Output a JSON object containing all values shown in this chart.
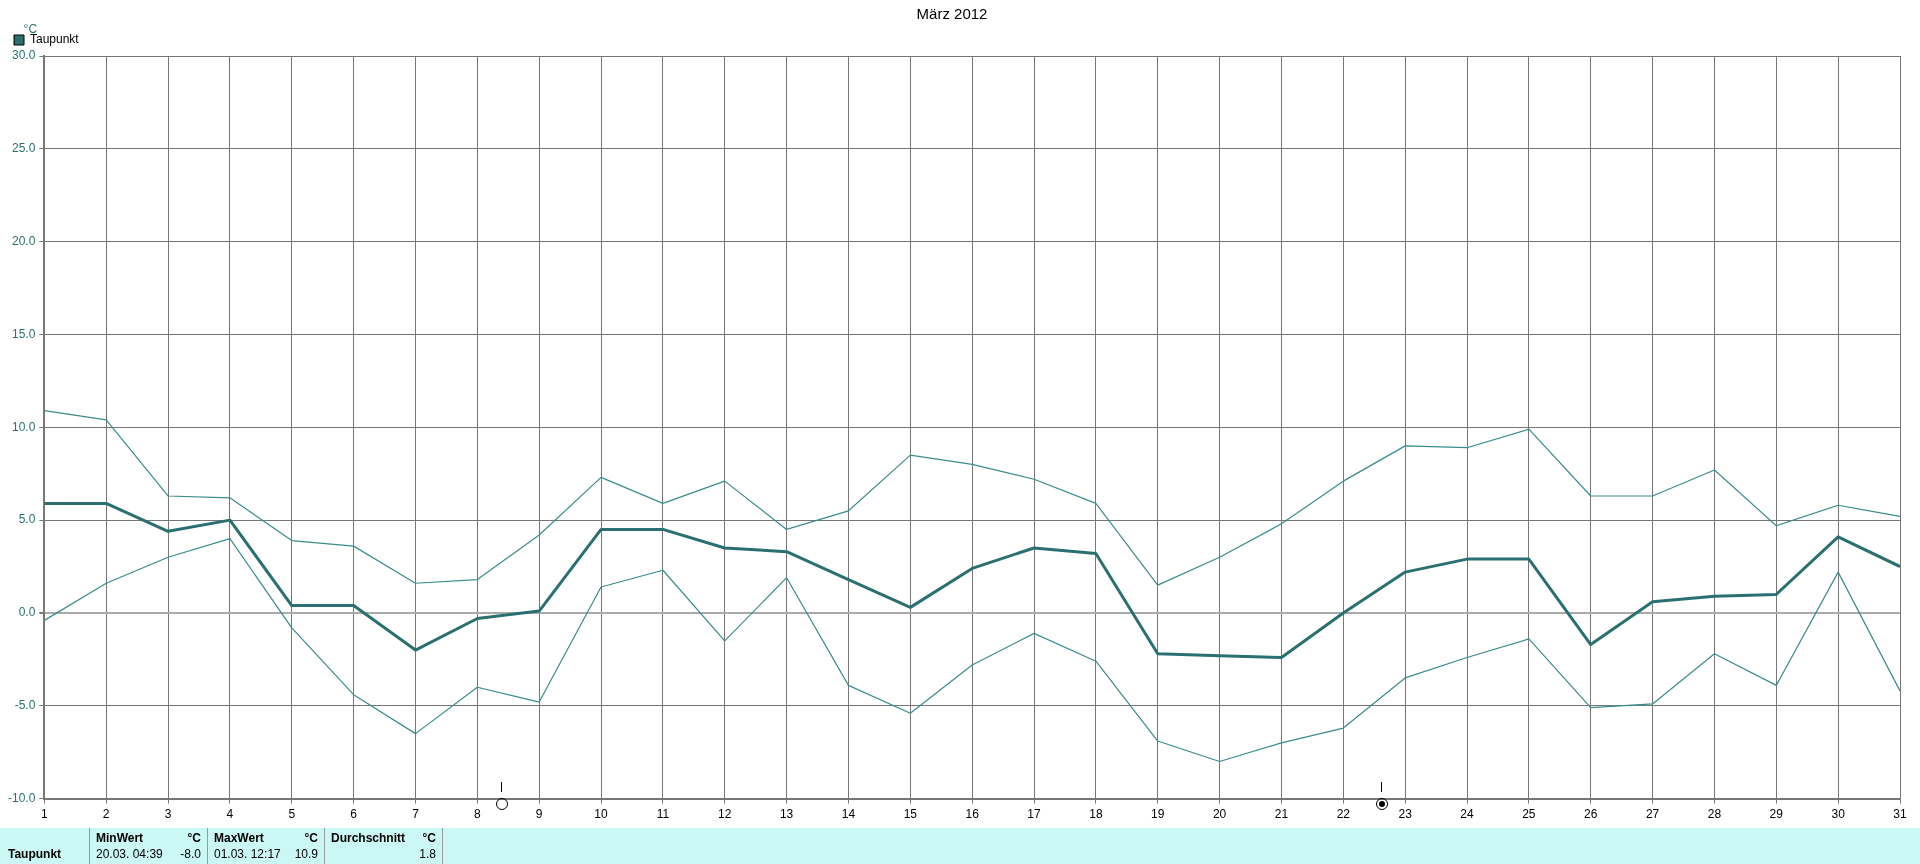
{
  "chart_data": {
    "type": "line",
    "title": "März 2012",
    "ylabel": "°C",
    "x": [
      1,
      2,
      3,
      4,
      5,
      6,
      7,
      8,
      9,
      10,
      11,
      12,
      13,
      14,
      15,
      16,
      17,
      18,
      19,
      20,
      21,
      22,
      23,
      24,
      25,
      26,
      27,
      28,
      29,
      30,
      31
    ],
    "series": [
      {
        "color": "#3a8c8c",
        "values": [
          10.9,
          10.4,
          6.3,
          6.2,
          3.9,
          3.6,
          1.6,
          1.8,
          4.2,
          7.3,
          5.9,
          7.1,
          4.5,
          5.5,
          8.5,
          8.0,
          7.2,
          5.9,
          1.5,
          3.0,
          4.8,
          7.1,
          9.0,
          8.9,
          9.9,
          6.3,
          6.3,
          7.7,
          4.7,
          5.8,
          5.2
        ]
      },
      {
        "name": "Taupunkt",
        "color": "#2b7070",
        "values": [
          5.9,
          5.9,
          4.4,
          5.0,
          0.4,
          0.4,
          -2.0,
          -0.3,
          0.1,
          4.5,
          4.5,
          3.5,
          3.3,
          1.8,
          0.3,
          2.4,
          3.5,
          3.2,
          -2.2,
          -2.3,
          -2.4,
          0.0,
          2.2,
          2.9,
          2.9,
          -1.7,
          0.6,
          0.9,
          1.0,
          4.1,
          2.5
        ]
      },
      {
        "color": "#3a8c8c",
        "values": [
          -0.4,
          1.6,
          3.0,
          4.0,
          -0.8,
          -4.4,
          -6.5,
          -4.0,
          -4.8,
          1.4,
          2.3,
          -1.5,
          1.9,
          -3.9,
          -5.4,
          -2.8,
          -1.1,
          -2.6,
          -6.9,
          -8.0,
          -7.0,
          -6.2,
          -3.5,
          -2.4,
          -1.4,
          -5.1,
          -4.9,
          -2.2,
          -3.9,
          2.2,
          -4.2
        ]
      }
    ],
    "xlim": [
      1,
      31
    ],
    "xticks": [
      1,
      2,
      3,
      4,
      5,
      6,
      7,
      8,
      9,
      10,
      11,
      12,
      13,
      14,
      15,
      16,
      17,
      18,
      19,
      20,
      21,
      22,
      23,
      24,
      25,
      26,
      27,
      28,
      29,
      30,
      31
    ],
    "ylim": [
      -10,
      30
    ],
    "yticks": [
      {
        "value": -10,
        "label": "-10.0"
      },
      {
        "value": -5,
        "label": "-5.0"
      },
      {
        "value": 0,
        "label": "0.0"
      },
      {
        "value": 5,
        "label": "5.0"
      },
      {
        "value": 10,
        "label": "10.0"
      },
      {
        "value": 15,
        "label": "15.0"
      },
      {
        "value": 20,
        "label": "20.0"
      },
      {
        "value": 25,
        "label": "25.0"
      },
      {
        "value": 30,
        "label": "30.0"
      }
    ],
    "grid": true,
    "legend": "top left",
    "marker": "none",
    "line_style": "solid",
    "annotations": [
      "Taupunkt",
      "MinWert",
      "°C",
      "20.03.  04:39",
      "-8.0",
      "MaxWert",
      "°C",
      "01.03.  12:17",
      "10.9",
      "Durchschnitt",
      "°C",
      "1.8"
    ]
  }
}
